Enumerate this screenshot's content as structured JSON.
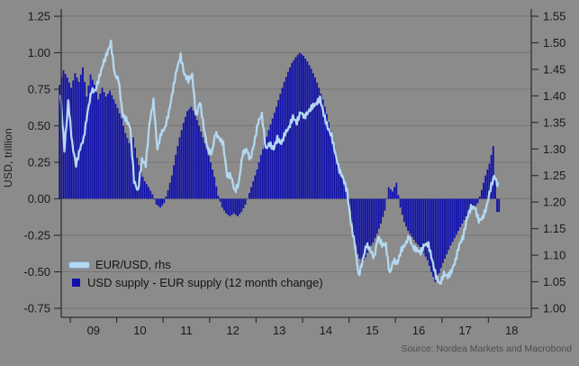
{
  "colors": {
    "background": "#8b8b8b",
    "grid": "#767676",
    "frame": "#303030",
    "tick": "#303030",
    "text": "#1a1a1a",
    "source_text": "#4d4d4d",
    "bar": "#1010ac",
    "line": "#b4d8f2"
  },
  "chart_data": {
    "type": "combo-bar-line",
    "title": "",
    "source": "Source: Nordea Markets and Macrobond",
    "left_axis": {
      "label": "USD, trillion",
      "range": [
        -0.75,
        1.25
      ],
      "tick_values": [
        1.25,
        1.0,
        0.75,
        0.5,
        0.25,
        0.0,
        -0.25,
        -0.5,
        -0.75
      ],
      "tick_labels": [
        "1.25",
        "1.00",
        "0.75",
        "0.50",
        "0.25",
        "0.00",
        "-0.25",
        "-0.50",
        "-0.75"
      ]
    },
    "right_axis": {
      "label": "",
      "range": [
        1.0,
        1.55
      ],
      "tick_values": [
        1.55,
        1.5,
        1.45,
        1.4,
        1.35,
        1.3,
        1.25,
        1.2,
        1.15,
        1.1,
        1.05,
        1.0
      ],
      "tick_labels": [
        "1.55",
        "1.50",
        "1.45",
        "1.40",
        "1.35",
        "1.30",
        "1.25",
        "1.20",
        "1.15",
        "1.10",
        "1.05",
        "1.00"
      ]
    },
    "x_axis": {
      "year_ticks": [
        2009,
        2010,
        2011,
        2012,
        2013,
        2014,
        2015,
        2016,
        2017,
        2018
      ],
      "year_labels": [
        "09",
        "10",
        "11",
        "12",
        "13",
        "14",
        "15",
        "16",
        "17",
        "18"
      ],
      "data_start": "2008-10",
      "data_end": "2018-03"
    },
    "grid": "horizontal-only",
    "legend_position": "inside-bottom-left",
    "series": [
      {
        "name": "EUR/USD, rhs",
        "type": "line",
        "axis": "right",
        "monthly_start": "2008-10",
        "values": [
          1.4,
          1.3,
          1.39,
          1.31,
          1.27,
          1.3,
          1.32,
          1.37,
          1.41,
          1.41,
          1.435,
          1.46,
          1.48,
          1.5,
          1.44,
          1.43,
          1.365,
          1.355,
          1.34,
          1.24,
          1.22,
          1.28,
          1.27,
          1.35,
          1.39,
          1.3,
          1.33,
          1.34,
          1.37,
          1.41,
          1.45,
          1.475,
          1.44,
          1.43,
          1.44,
          1.36,
          1.39,
          1.34,
          1.3,
          1.29,
          1.33,
          1.32,
          1.31,
          1.25,
          1.25,
          1.22,
          1.235,
          1.29,
          1.3,
          1.28,
          1.31,
          1.35,
          1.365,
          1.3,
          1.31,
          1.3,
          1.32,
          1.31,
          1.33,
          1.34,
          1.36,
          1.35,
          1.37,
          1.36,
          1.37,
          1.38,
          1.385,
          1.395,
          1.365,
          1.34,
          1.325,
          1.29,
          1.26,
          1.245,
          1.22,
          1.16,
          1.12,
          1.06,
          1.09,
          1.12,
          1.11,
          1.095,
          1.135,
          1.12,
          1.12,
          1.065,
          1.09,
          1.085,
          1.11,
          1.12,
          1.135,
          1.115,
          1.11,
          1.105,
          1.12,
          1.12,
          1.09,
          1.06,
          1.045,
          1.065,
          1.06,
          1.07,
          1.09,
          1.12,
          1.135,
          1.17,
          1.19,
          1.19,
          1.165,
          1.17,
          1.19,
          1.225,
          1.25,
          1.23
        ]
      },
      {
        "name": "USD supply - EUR supply (12 month change)",
        "type": "bar",
        "axis": "left",
        "monthly_start": "2008-10",
        "values": [
          0.78,
          0.88,
          0.83,
          0.76,
          0.86,
          0.8,
          0.9,
          0.7,
          0.85,
          0.78,
          0.68,
          0.76,
          0.7,
          0.74,
          0.68,
          0.62,
          0.55,
          0.45,
          0.38,
          0.42,
          0.28,
          0.18,
          0.12,
          0.08,
          0.03,
          -0.04,
          -0.06,
          -0.03,
          0.06,
          0.16,
          0.3,
          0.42,
          0.52,
          0.6,
          0.63,
          0.58,
          0.5,
          0.42,
          0.34,
          0.25,
          0.15,
          0.02,
          -0.06,
          -0.1,
          -0.12,
          -0.1,
          -0.12,
          -0.09,
          -0.04,
          0.04,
          0.12,
          0.2,
          0.3,
          0.38,
          0.47,
          0.55,
          0.63,
          0.72,
          0.8,
          0.87,
          0.93,
          0.97,
          1.0,
          0.98,
          0.94,
          0.89,
          0.83,
          0.76,
          0.68,
          0.58,
          0.47,
          0.36,
          0.24,
          0.14,
          0.05,
          -0.08,
          -0.25,
          -0.38,
          -0.44,
          -0.4,
          -0.34,
          -0.3,
          -0.24,
          -0.17,
          -0.08,
          0.08,
          0.05,
          0.11,
          -0.06,
          -0.16,
          -0.22,
          -0.26,
          -0.3,
          -0.33,
          -0.37,
          -0.42,
          -0.5,
          -0.57,
          -0.51,
          -0.44,
          -0.38,
          -0.32,
          -0.27,
          -0.22,
          -0.17,
          -0.12,
          -0.09,
          -0.06,
          -0.03,
          0.06,
          0.16,
          0.24,
          0.36,
          -0.09
        ]
      }
    ]
  }
}
